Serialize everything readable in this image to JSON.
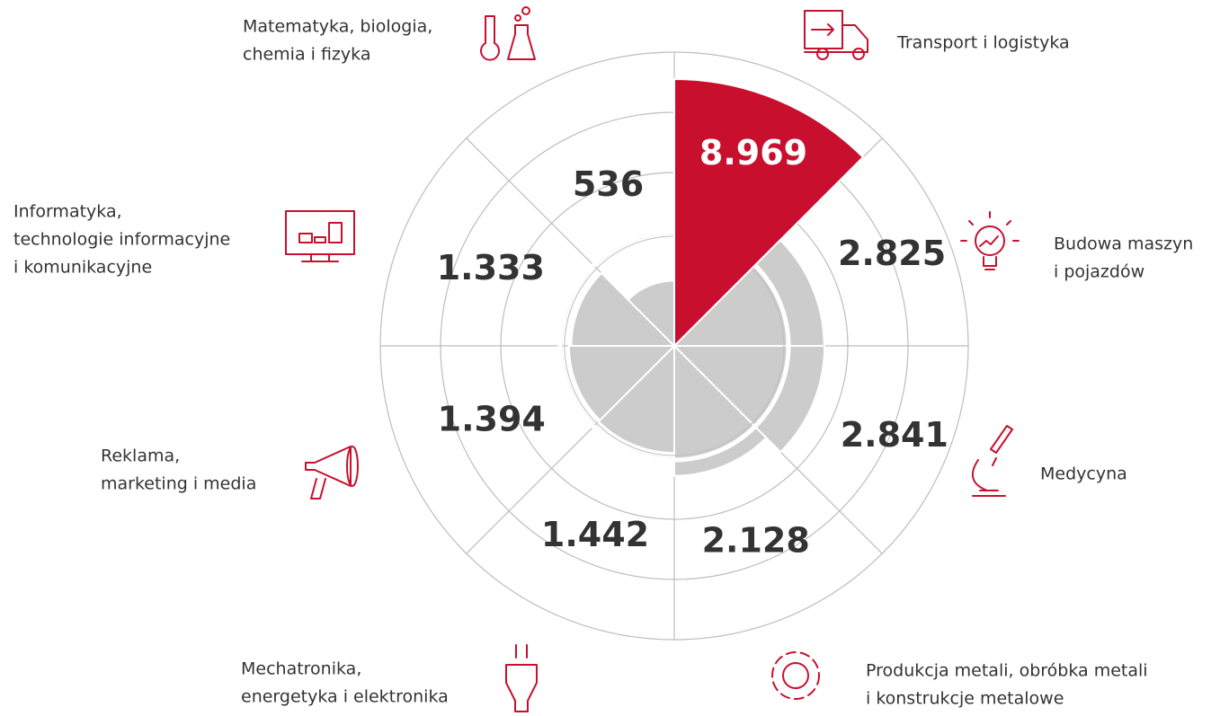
{
  "chart_data": {
    "type": "polar-area",
    "categories": [
      [
        "Transport i logistyka"
      ],
      [
        "Budowa maszyn",
        "i pojazdów"
      ],
      [
        "Medycyna"
      ],
      [
        "Produkcja metali, obróbka metali",
        "i konstrukcje metalowe"
      ],
      [
        "Mechatronika,",
        "energetyka i elektronika"
      ],
      [
        "Reklama,",
        "marketing i media"
      ],
      [
        "Informatyka,",
        "technologie informacyjne",
        "i komunikacyjne"
      ],
      [
        "Matematyka, biologia,",
        "chemia i fizyka"
      ]
    ],
    "values": [
      8969,
      2825,
      2841,
      2128,
      1442,
      1394,
      1333,
      536
    ],
    "value_labels": [
      "8.969",
      "2.825",
      "2.841",
      "2.128",
      "1.442",
      "1.394",
      "1.333",
      "536"
    ],
    "color": "#cccccc",
    "highlight": 0,
    "highlight_color": "#c8102e"
  }
}
